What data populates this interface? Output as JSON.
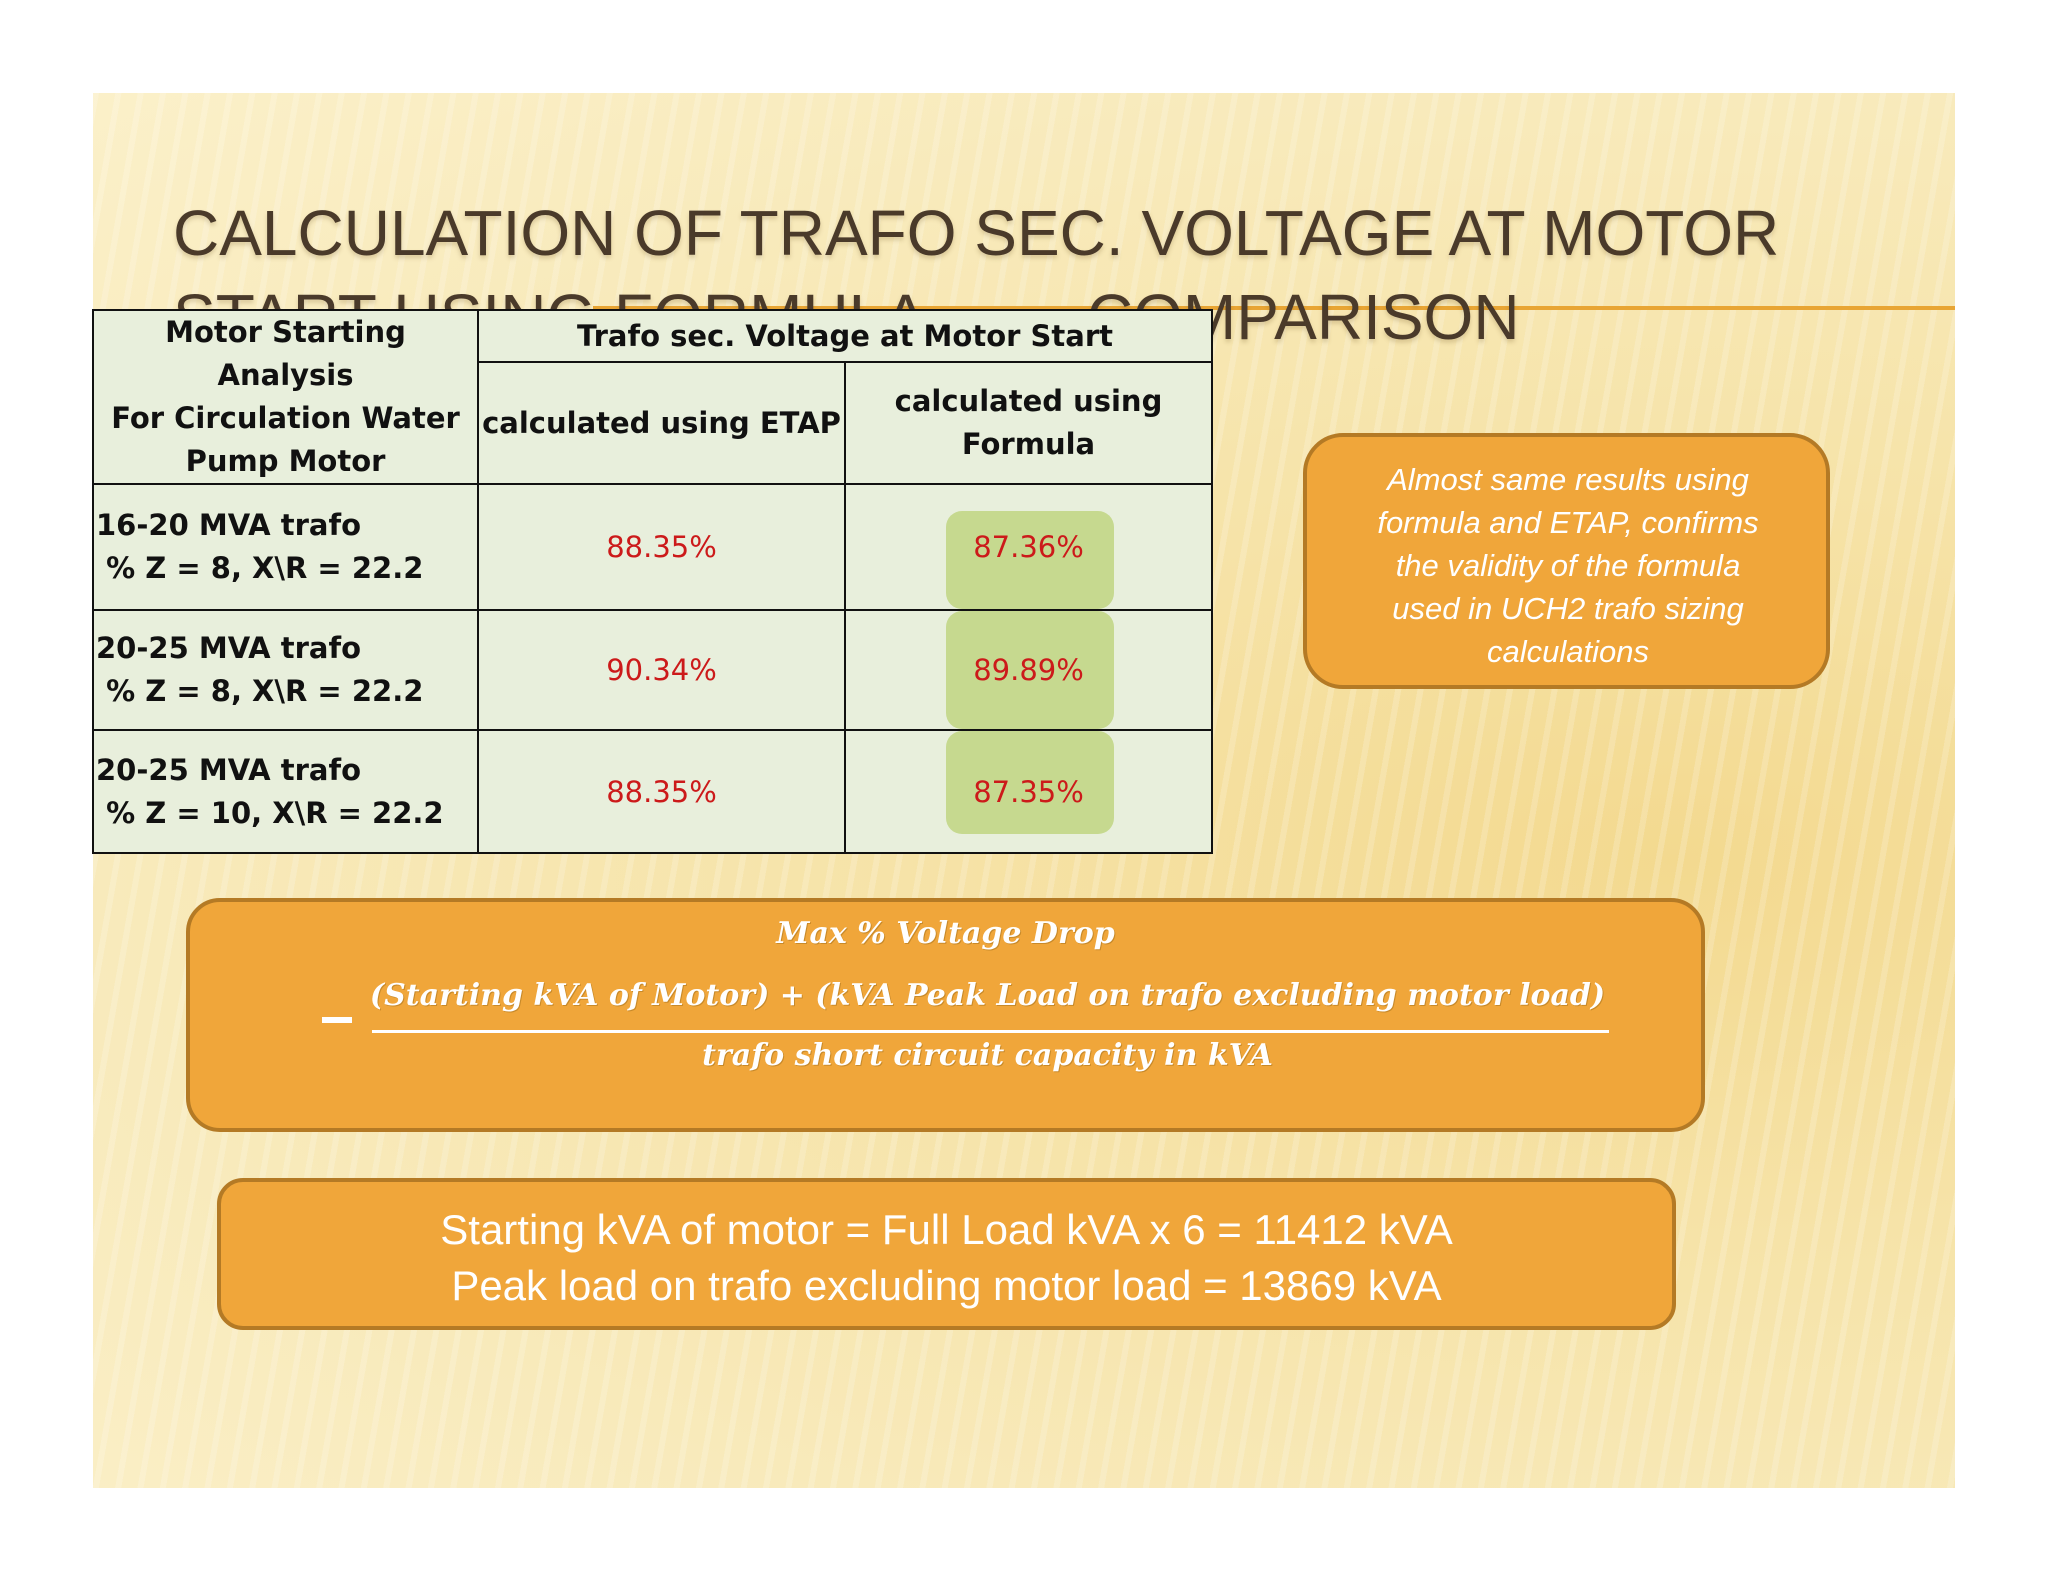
{
  "title": {
    "line1": "CALCULATION OF TRAFO SEC. VOLTAGE AT MOTOR",
    "line2": "START USING FORMULA …… COMPARISON"
  },
  "table": {
    "corner_header": [
      "Motor Starting Analysis",
      "For Circulation Water",
      "Pump Motor"
    ],
    "group_header": "Trafo sec. Voltage at Motor Start",
    "col_etap": "calculated using ETAP",
    "col_formula": [
      "calculated using",
      "Formula"
    ],
    "rows": [
      {
        "name": "16-20 MVA trafo",
        "params": " % Z = 8, X\\R = 22.2",
        "etap": "88.35%",
        "formula": "87.36%"
      },
      {
        "name": "20-25 MVA trafo",
        "params": " % Z = 8, X\\R = 22.2",
        "etap": "90.34%",
        "formula": "89.89%"
      },
      {
        "name": "20-25 MVA trafo",
        "params": " % Z = 10, X\\R = 22.2",
        "etap": "88.35%",
        "formula": "87.35%"
      }
    ]
  },
  "callout": {
    "lines": [
      "Almost same results using",
      "formula and ETAP, confirms",
      "the validity of the formula",
      "used in UCH2 trafo sizing",
      "calculations"
    ]
  },
  "formula": {
    "label": "Max % Voltage Drop",
    "numerator": "(Starting kVA of Motor) +  (kVA Peak Load on trafo excluding motor load)",
    "denominator": "trafo short circuit capacity in kVA"
  },
  "info": {
    "line1": "Starting kVA of motor = Full Load kVA x 6 = 11412 kVA",
    "line2": "Peak load on trafo excluding motor load = 13869 kVA"
  },
  "colors": {
    "accent": "#f0a63a",
    "value_text": "#cc1a1a",
    "highlight": "#c6d98f",
    "table_bg": "#e8efdc"
  }
}
